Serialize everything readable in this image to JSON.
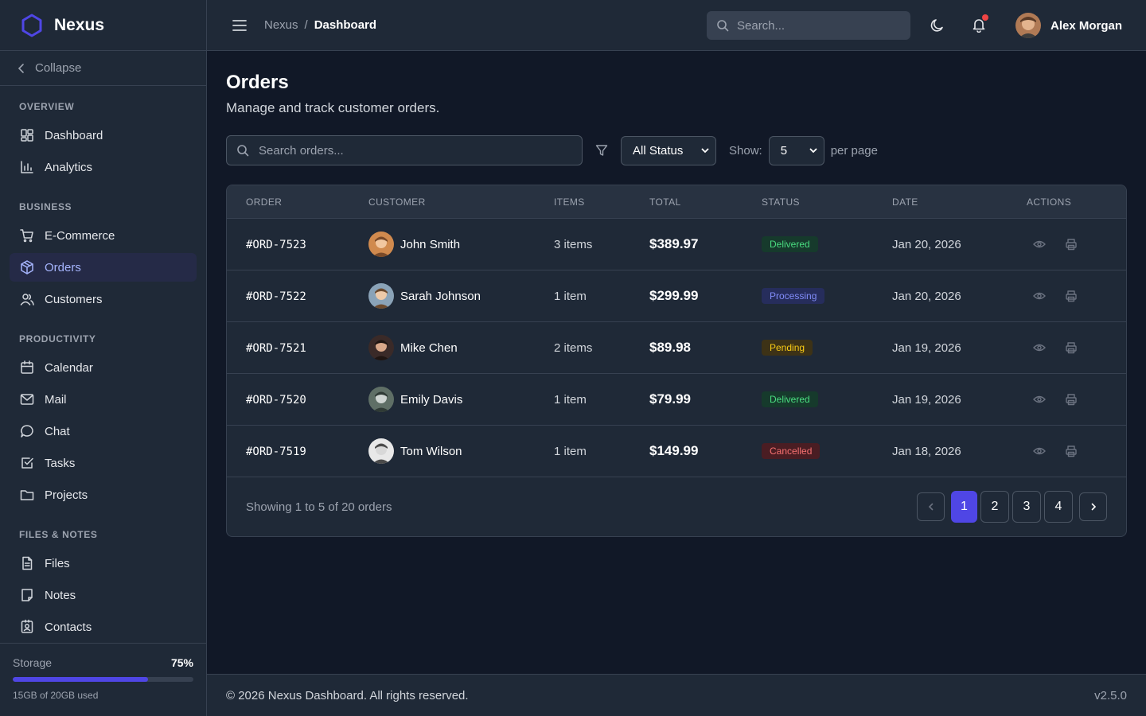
{
  "brand": {
    "name": "Nexus",
    "accent": "#4f46e5"
  },
  "sidebar": {
    "collapse_label": "Collapse",
    "sections": [
      {
        "title": "OVERVIEW",
        "items": [
          {
            "label": "Dashboard",
            "icon": "dashboard-grid-icon"
          },
          {
            "label": "Analytics",
            "icon": "bar-chart-icon"
          }
        ]
      },
      {
        "title": "BUSINESS",
        "items": [
          {
            "label": "E-Commerce",
            "icon": "cart-icon"
          },
          {
            "label": "Orders",
            "icon": "box-icon",
            "active": true
          },
          {
            "label": "Customers",
            "icon": "users-icon"
          }
        ]
      },
      {
        "title": "PRODUCTIVITY",
        "items": [
          {
            "label": "Calendar",
            "icon": "calendar-icon"
          },
          {
            "label": "Mail",
            "icon": "mail-icon"
          },
          {
            "label": "Chat",
            "icon": "chat-icon"
          },
          {
            "label": "Tasks",
            "icon": "checkbox-icon"
          },
          {
            "label": "Projects",
            "icon": "folder-icon"
          }
        ]
      },
      {
        "title": "FILES & NOTES",
        "items": [
          {
            "label": "Files",
            "icon": "file-icon"
          },
          {
            "label": "Notes",
            "icon": "note-icon"
          },
          {
            "label": "Contacts",
            "icon": "contact-card-icon"
          }
        ]
      }
    ],
    "storage": {
      "label": "Storage",
      "percent_label": "75%",
      "fraction": 0.75,
      "used": "15GB of 20GB used"
    }
  },
  "header": {
    "breadcrumb": [
      "Nexus",
      "Dashboard"
    ],
    "search_placeholder": "Search...",
    "user_name": "Alex Morgan"
  },
  "page": {
    "title": "Orders",
    "subtitle": "Manage and track customer orders.",
    "search_placeholder": "Search orders...",
    "status_filter": "All Status",
    "show_label": "Show:",
    "per_page_value": "5",
    "per_page_label": "per page"
  },
  "table": {
    "columns": [
      "ORDER",
      "CUSTOMER",
      "ITEMS",
      "TOTAL",
      "STATUS",
      "DATE",
      "ACTIONS"
    ],
    "rows": [
      {
        "order": "#ORD-7523",
        "customer": "John Smith",
        "items": "3 items",
        "total": "$389.97",
        "status": "Delivered",
        "status_class": "b-delivered",
        "date": "Jan 20, 2026"
      },
      {
        "order": "#ORD-7522",
        "customer": "Sarah Johnson",
        "items": "1 item",
        "total": "$299.99",
        "status": "Processing",
        "status_class": "b-processing",
        "date": "Jan 20, 2026"
      },
      {
        "order": "#ORD-7521",
        "customer": "Mike Chen",
        "items": "2 items",
        "total": "$89.98",
        "status": "Pending",
        "status_class": "b-pending",
        "date": "Jan 19, 2026"
      },
      {
        "order": "#ORD-7520",
        "customer": "Emily Davis",
        "items": "1 item",
        "total": "$79.99",
        "status": "Delivered",
        "status_class": "b-delivered",
        "date": "Jan 19, 2026"
      },
      {
        "order": "#ORD-7519",
        "customer": "Tom Wilson",
        "items": "1 item",
        "total": "$149.99",
        "status": "Cancelled",
        "status_class": "b-cancelled",
        "date": "Jan 18, 2026"
      }
    ],
    "showing": "Showing 1 to 5 of 20 orders",
    "pages": [
      "1",
      "2",
      "3",
      "4"
    ],
    "current_page": "1"
  },
  "footer": {
    "copyright": "© 2026 Nexus Dashboard. All rights reserved.",
    "version": "v2.5.0"
  }
}
